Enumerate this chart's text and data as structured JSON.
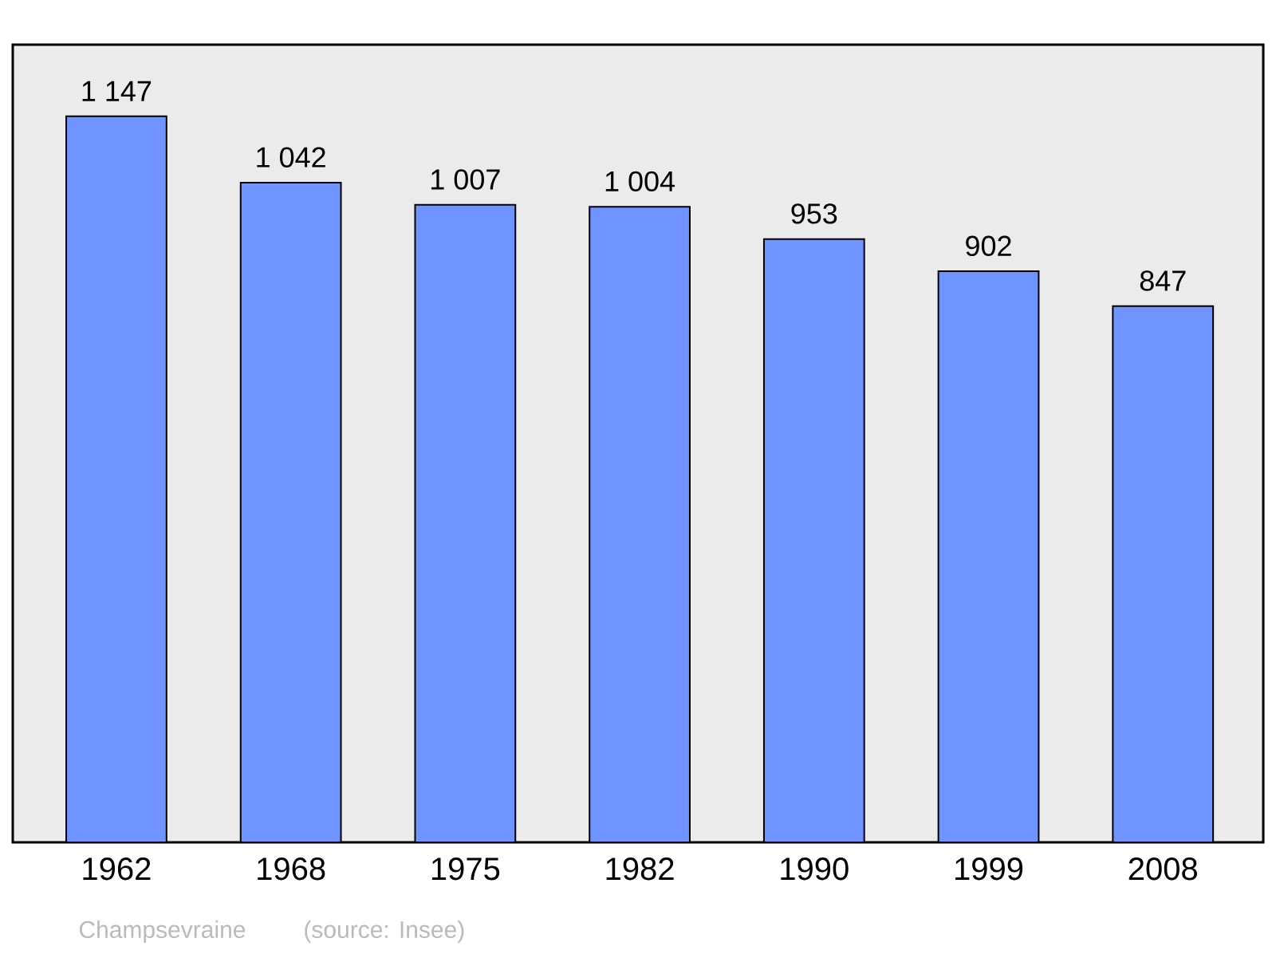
{
  "chart_data": {
    "type": "bar",
    "categories": [
      "1962",
      "1968",
      "1975",
      "1982",
      "1990",
      "1999",
      "2008"
    ],
    "values": [
      1147,
      1042,
      1007,
      1004,
      953,
      902,
      847
    ],
    "value_labels": [
      "1 147",
      "1 042",
      "1 007",
      "1 004",
      "953",
      "902",
      "847"
    ],
    "color": "#7094ff",
    "ylim": [
      0,
      1260
    ],
    "annotations": [
      "Champsevraine",
      "(source: Insee)"
    ]
  }
}
